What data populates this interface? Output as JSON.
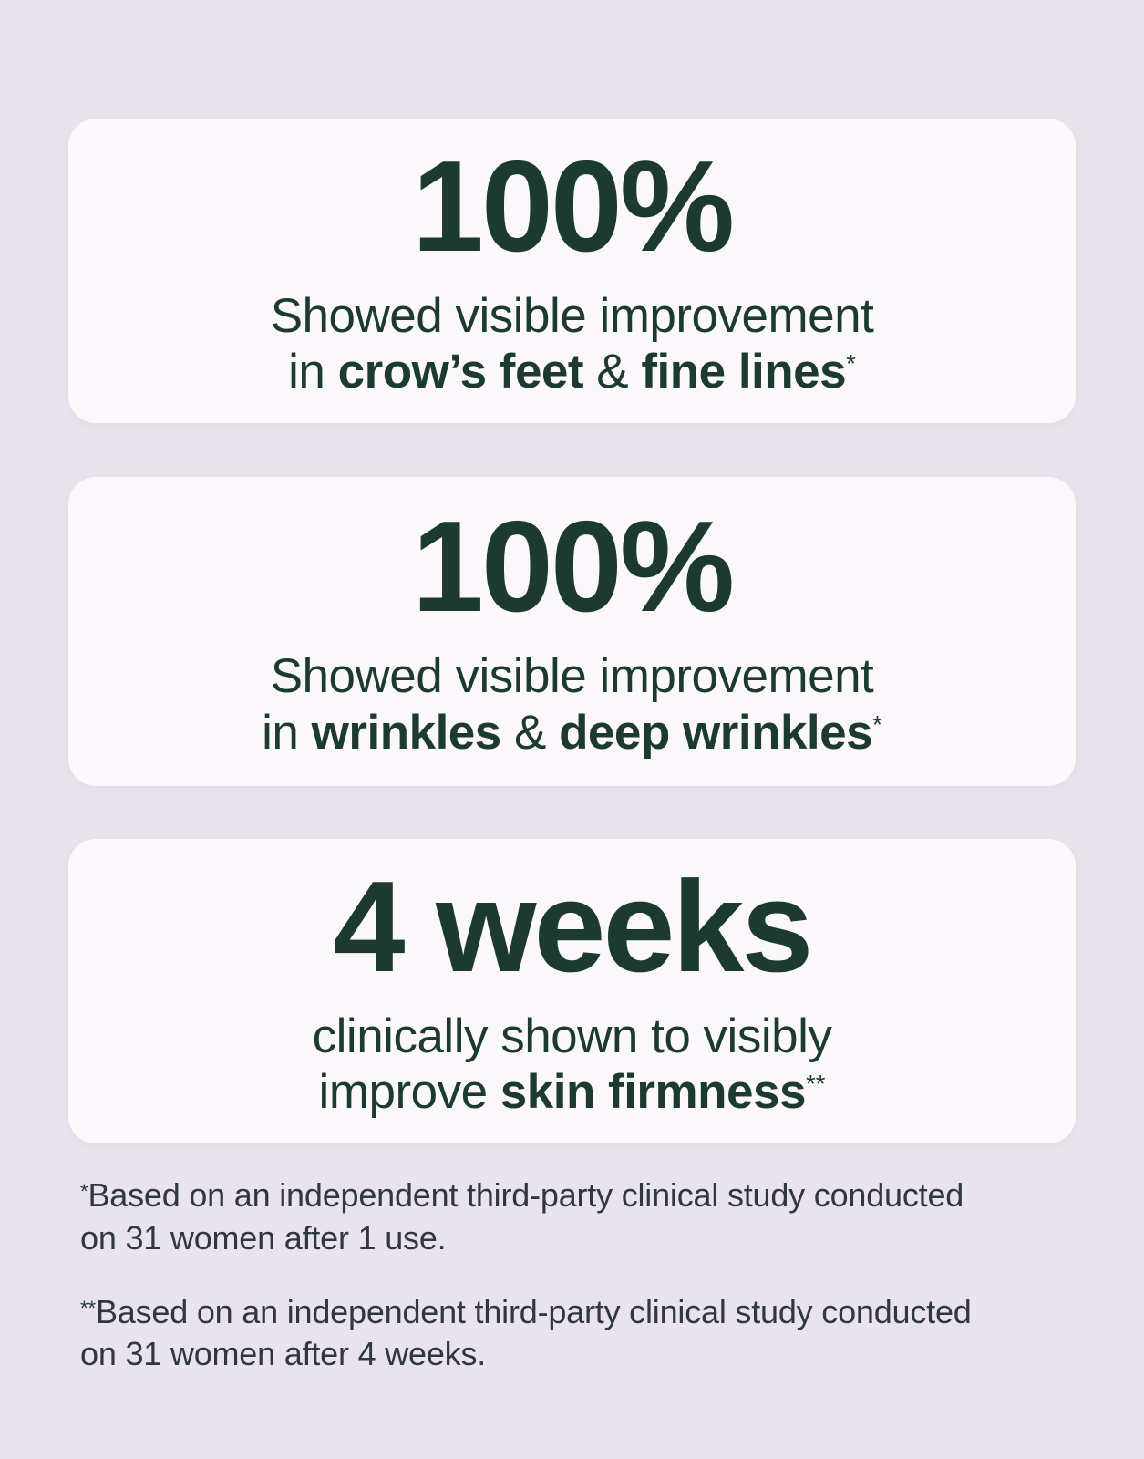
{
  "theme": {
    "background_color": "#e9e3ed",
    "card_background_color": "#faf8fb",
    "headline_color": "#1d3a30",
    "footnote_color": "#30383e"
  },
  "cards": [
    {
      "stat": "100%",
      "line1": "Showed visible improvement",
      "line2": {
        "pre": "in ",
        "b1": "crow’s feet",
        "mid": " & ",
        "b2": "fine lines",
        "sup": "*"
      }
    },
    {
      "stat": "100%",
      "line1": "Showed visible improvement",
      "line2": {
        "pre": "in ",
        "b1": "wrinkles",
        "mid": " & ",
        "b2": "deep wrinkles",
        "sup": "*"
      }
    },
    {
      "stat": "4 weeks",
      "line1": "clinically shown to visibly",
      "line2": {
        "pre": "improve ",
        "b1": "skin firmness",
        "mid": "",
        "b2": "",
        "sup": "**"
      }
    }
  ],
  "footnotes": [
    {
      "sup": "*",
      "line1": "Based on an independent third-party clinical study conducted",
      "line2": "on 31 women after 1 use."
    },
    {
      "sup": "**",
      "line1": "Based on an independent third-party clinical study conducted",
      "line2": "on 31 women after 4 weeks."
    }
  ]
}
